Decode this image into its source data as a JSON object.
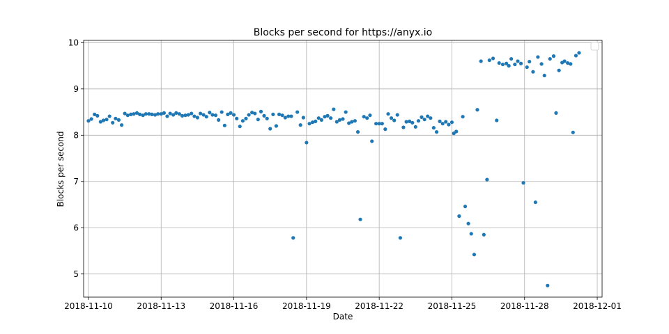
{
  "chart_data": {
    "type": "scatter",
    "title": "Blocks per second for https://anyx.io",
    "xlabel": "Date",
    "ylabel": "Blocks per second",
    "xlim": [
      -0.2,
      21.2
    ],
    "ylim": [
      4.5,
      10.05
    ],
    "grid": true,
    "marker_color": "#1f77b4",
    "x_ticks": [
      {
        "value": 0,
        "label": "2018-11-10"
      },
      {
        "value": 3,
        "label": "2018-11-13"
      },
      {
        "value": 6,
        "label": "2018-11-16"
      },
      {
        "value": 9,
        "label": "2018-11-19"
      },
      {
        "value": 12,
        "label": "2018-11-22"
      },
      {
        "value": 15,
        "label": "2018-11-25"
      },
      {
        "value": 18,
        "label": "2018-11-28"
      },
      {
        "value": 21,
        "label": "2018-12-01"
      }
    ],
    "y_ticks": [
      {
        "value": 5,
        "label": "5"
      },
      {
        "value": 6,
        "label": "6"
      },
      {
        "value": 7,
        "label": "7"
      },
      {
        "value": 8,
        "label": "8"
      },
      {
        "value": 9,
        "label": "9"
      },
      {
        "value": 10,
        "label": "10"
      }
    ],
    "series": [
      {
        "name": "blocks_per_second",
        "points": [
          [
            0.0,
            8.31
          ],
          [
            0.12,
            8.35
          ],
          [
            0.25,
            8.45
          ],
          [
            0.37,
            8.42
          ],
          [
            0.5,
            8.29
          ],
          [
            0.62,
            8.32
          ],
          [
            0.75,
            8.34
          ],
          [
            0.87,
            8.41
          ],
          [
            1.0,
            8.27
          ],
          [
            1.12,
            8.36
          ],
          [
            1.25,
            8.33
          ],
          [
            1.37,
            8.22
          ],
          [
            1.5,
            8.47
          ],
          [
            1.62,
            8.43
          ],
          [
            1.75,
            8.45
          ],
          [
            1.87,
            8.46
          ],
          [
            2.0,
            8.48
          ],
          [
            2.12,
            8.45
          ],
          [
            2.25,
            8.43
          ],
          [
            2.37,
            8.46
          ],
          [
            2.5,
            8.46
          ],
          [
            2.62,
            8.45
          ],
          [
            2.75,
            8.44
          ],
          [
            2.87,
            8.46
          ],
          [
            3.0,
            8.46
          ],
          [
            3.12,
            8.48
          ],
          [
            3.25,
            8.41
          ],
          [
            3.37,
            8.47
          ],
          [
            3.5,
            8.44
          ],
          [
            3.62,
            8.48
          ],
          [
            3.75,
            8.46
          ],
          [
            3.87,
            8.42
          ],
          [
            4.0,
            8.43
          ],
          [
            4.12,
            8.44
          ],
          [
            4.25,
            8.47
          ],
          [
            4.37,
            8.41
          ],
          [
            4.5,
            8.38
          ],
          [
            4.62,
            8.47
          ],
          [
            4.75,
            8.44
          ],
          [
            4.87,
            8.4
          ],
          [
            5.0,
            8.49
          ],
          [
            5.12,
            8.44
          ],
          [
            5.25,
            8.43
          ],
          [
            5.37,
            8.33
          ],
          [
            5.5,
            8.5
          ],
          [
            5.62,
            8.21
          ],
          [
            5.75,
            8.45
          ],
          [
            5.87,
            8.48
          ],
          [
            6.0,
            8.44
          ],
          [
            6.12,
            8.36
          ],
          [
            6.25,
            8.19
          ],
          [
            6.37,
            8.31
          ],
          [
            6.5,
            8.36
          ],
          [
            6.62,
            8.44
          ],
          [
            6.75,
            8.49
          ],
          [
            6.87,
            8.47
          ],
          [
            7.0,
            8.34
          ],
          [
            7.12,
            8.51
          ],
          [
            7.25,
            8.42
          ],
          [
            7.37,
            8.36
          ],
          [
            7.5,
            8.14
          ],
          [
            7.62,
            8.45
          ],
          [
            7.75,
            8.2
          ],
          [
            7.87,
            8.45
          ],
          [
            8.0,
            8.43
          ],
          [
            8.12,
            8.38
          ],
          [
            8.25,
            8.41
          ],
          [
            8.37,
            8.41
          ],
          [
            8.45,
            5.78
          ],
          [
            8.62,
            8.5
          ],
          [
            8.75,
            8.22
          ],
          [
            8.87,
            8.38
          ],
          [
            9.0,
            7.84
          ],
          [
            9.12,
            8.25
          ],
          [
            9.25,
            8.28
          ],
          [
            9.37,
            8.3
          ],
          [
            9.5,
            8.37
          ],
          [
            9.62,
            8.33
          ],
          [
            9.75,
            8.4
          ],
          [
            9.87,
            8.42
          ],
          [
            10.0,
            8.37
          ],
          [
            10.12,
            8.56
          ],
          [
            10.25,
            8.29
          ],
          [
            10.37,
            8.33
          ],
          [
            10.5,
            8.35
          ],
          [
            10.62,
            8.5
          ],
          [
            10.75,
            8.26
          ],
          [
            10.87,
            8.29
          ],
          [
            11.0,
            8.31
          ],
          [
            11.12,
            8.07
          ],
          [
            11.22,
            6.18
          ],
          [
            11.37,
            8.4
          ],
          [
            11.5,
            8.37
          ],
          [
            11.62,
            8.43
          ],
          [
            11.7,
            7.87
          ],
          [
            11.87,
            8.25
          ],
          [
            12.0,
            8.25
          ],
          [
            12.12,
            8.25
          ],
          [
            12.25,
            8.13
          ],
          [
            12.37,
            8.46
          ],
          [
            12.5,
            8.37
          ],
          [
            12.62,
            8.32
          ],
          [
            12.75,
            8.44
          ],
          [
            12.87,
            5.78
          ],
          [
            13.0,
            8.17
          ],
          [
            13.12,
            8.29
          ],
          [
            13.25,
            8.3
          ],
          [
            13.37,
            8.27
          ],
          [
            13.5,
            8.18
          ],
          [
            13.62,
            8.31
          ],
          [
            13.75,
            8.39
          ],
          [
            13.87,
            8.34
          ],
          [
            14.0,
            8.41
          ],
          [
            14.12,
            8.37
          ],
          [
            14.25,
            8.16
          ],
          [
            14.37,
            8.07
          ],
          [
            14.5,
            8.3
          ],
          [
            14.62,
            8.25
          ],
          [
            14.75,
            8.29
          ],
          [
            14.87,
            8.23
          ],
          [
            15.0,
            8.28
          ],
          [
            15.08,
            8.04
          ],
          [
            15.18,
            8.08
          ],
          [
            15.3,
            6.25
          ],
          [
            15.45,
            8.4
          ],
          [
            15.55,
            6.46
          ],
          [
            15.68,
            6.09
          ],
          [
            15.8,
            5.87
          ],
          [
            15.92,
            5.42
          ],
          [
            16.05,
            8.55
          ],
          [
            16.2,
            9.6
          ],
          [
            16.32,
            5.85
          ],
          [
            16.45,
            7.04
          ],
          [
            16.55,
            9.62
          ],
          [
            16.7,
            9.66
          ],
          [
            16.85,
            8.32
          ],
          [
            16.95,
            9.56
          ],
          [
            17.1,
            9.53
          ],
          [
            17.25,
            9.55
          ],
          [
            17.35,
            9.5
          ],
          [
            17.45,
            9.65
          ],
          [
            17.6,
            9.53
          ],
          [
            17.72,
            9.6
          ],
          [
            17.85,
            9.55
          ],
          [
            17.95,
            6.97
          ],
          [
            18.1,
            9.47
          ],
          [
            18.2,
            9.59
          ],
          [
            18.35,
            9.37
          ],
          [
            18.45,
            6.55
          ],
          [
            18.55,
            9.69
          ],
          [
            18.7,
            9.54
          ],
          [
            18.82,
            9.29
          ],
          [
            18.95,
            4.75
          ],
          [
            19.05,
            9.65
          ],
          [
            19.2,
            9.71
          ],
          [
            19.3,
            8.48
          ],
          [
            19.42,
            9.4
          ],
          [
            19.55,
            9.57
          ],
          [
            19.65,
            9.6
          ],
          [
            19.78,
            9.56
          ],
          [
            19.9,
            9.54
          ],
          [
            20.0,
            8.06
          ],
          [
            20.12,
            9.72
          ],
          [
            20.25,
            9.78
          ]
        ]
      }
    ]
  }
}
